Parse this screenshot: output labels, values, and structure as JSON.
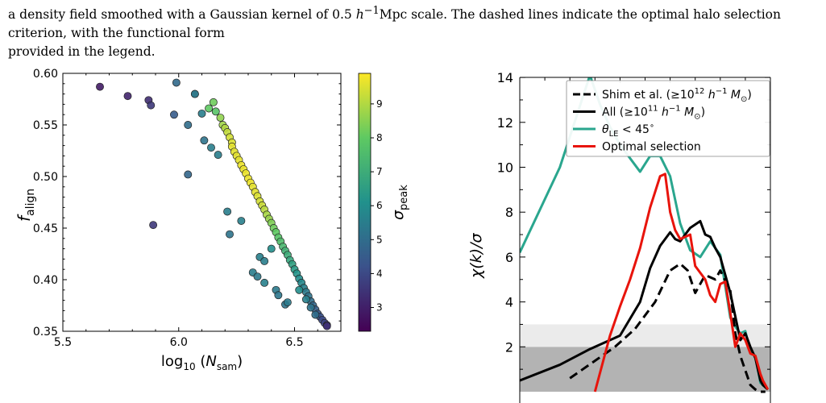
{
  "caption": {
    "line1_part1": "a density field smoothed with a Gaussian kernel of 0.5 ",
    "line1_h": "h",
    "line1_sup": "−1",
    "line1_part2": "Mpc scale. The dashed lines indicate the optimal halo selection criterion, with the functional form",
    "line2": "provided in the legend."
  },
  "colors": {
    "black": "#000000",
    "teal": "#2aa68e",
    "red": "#e8140c",
    "band_light": "#ebebeb",
    "band_dark": "#b3b3b3"
  },
  "chart_data": [
    {
      "type": "scatter",
      "title": "",
      "xlabel": "log10 (N_sam)",
      "ylabel": "f_align",
      "xlim": [
        5.5,
        6.7
      ],
      "ylim": [
        0.35,
        0.6
      ],
      "xticks": [
        "5.5",
        "6.0",
        "6.5"
      ],
      "yticks": [
        "0.35",
        "0.40",
        "0.45",
        "0.50",
        "0.55",
        "0.60"
      ],
      "colorbar": {
        "label": "σ_peak",
        "range": [
          2.3,
          9.9
        ],
        "ticks": [
          "3",
          "4",
          "5",
          "6",
          "7",
          "8",
          "9"
        ],
        "colormap": "viridis"
      },
      "points": [
        [
          5.66,
          0.587,
          2.9
        ],
        [
          5.78,
          0.578,
          3.1
        ],
        [
          5.87,
          0.574,
          3.3
        ],
        [
          5.88,
          0.569,
          3.6
        ],
        [
          5.89,
          0.453,
          3.6
        ],
        [
          5.98,
          0.56,
          4.5
        ],
        [
          5.99,
          0.591,
          4.9
        ],
        [
          6.04,
          0.55,
          5.0
        ],
        [
          6.04,
          0.502,
          4.8
        ],
        [
          6.07,
          0.58,
          7.0
        ],
        [
          6.07,
          0.58,
          5.2
        ],
        [
          6.1,
          0.561,
          5.5
        ],
        [
          6.11,
          0.535,
          5.2
        ],
        [
          6.13,
          0.566,
          8.0
        ],
        [
          6.15,
          0.572,
          8.2
        ],
        [
          6.14,
          0.528,
          5.5
        ],
        [
          6.16,
          0.563,
          7.8
        ],
        [
          6.18,
          0.557,
          8.6
        ],
        [
          6.19,
          0.55,
          8.8
        ],
        [
          6.17,
          0.521,
          5.5
        ],
        [
          6.2,
          0.547,
          9.0
        ],
        [
          6.21,
          0.543,
          9.2
        ],
        [
          6.21,
          0.466,
          5.5
        ],
        [
          6.22,
          0.538,
          9.4
        ],
        [
          6.23,
          0.533,
          9.5
        ],
        [
          6.23,
          0.529,
          9.6
        ],
        [
          6.22,
          0.444,
          5.2
        ],
        [
          6.24,
          0.524,
          9.6
        ],
        [
          6.25,
          0.52,
          9.6
        ],
        [
          6.26,
          0.516,
          9.6
        ],
        [
          6.27,
          0.511,
          9.7
        ],
        [
          6.28,
          0.507,
          9.7
        ],
        [
          6.27,
          0.457,
          5.6
        ],
        [
          6.29,
          0.503,
          9.7
        ],
        [
          6.3,
          0.498,
          9.7
        ],
        [
          6.31,
          0.494,
          9.7
        ],
        [
          6.32,
          0.49,
          9.6
        ],
        [
          6.33,
          0.485,
          9.6
        ],
        [
          6.34,
          0.481,
          9.5
        ],
        [
          6.35,
          0.476,
          9.4
        ],
        [
          6.36,
          0.472,
          9.3
        ],
        [
          6.37,
          0.468,
          9.1
        ],
        [
          6.38,
          0.463,
          8.9
        ],
        [
          6.39,
          0.459,
          8.7
        ],
        [
          6.4,
          0.455,
          8.4
        ],
        [
          6.41,
          0.45,
          8.2
        ],
        [
          6.42,
          0.446,
          8.0
        ],
        [
          6.43,
          0.441,
          7.8
        ],
        [
          6.44,
          0.437,
          7.6
        ],
        [
          6.45,
          0.432,
          7.4
        ],
        [
          6.46,
          0.428,
          7.2
        ],
        [
          6.47,
          0.424,
          7.0
        ],
        [
          6.48,
          0.419,
          6.8
        ],
        [
          6.49,
          0.415,
          6.6
        ],
        [
          6.5,
          0.41,
          6.4
        ],
        [
          6.51,
          0.406,
          6.2
        ],
        [
          6.52,
          0.401,
          6.0
        ],
        [
          6.53,
          0.397,
          5.8
        ],
        [
          6.54,
          0.392,
          5.6
        ],
        [
          6.55,
          0.388,
          5.4
        ],
        [
          6.56,
          0.384,
          5.2
        ],
        [
          6.57,
          0.379,
          5.0
        ],
        [
          6.58,
          0.375,
          4.8
        ],
        [
          6.59,
          0.371,
          4.6
        ],
        [
          6.6,
          0.367,
          4.4
        ],
        [
          6.61,
          0.364,
          4.2
        ],
        [
          6.62,
          0.361,
          4.0
        ],
        [
          6.63,
          0.358,
          3.8
        ],
        [
          6.64,
          0.356,
          3.6
        ],
        [
          6.64,
          0.355,
          3.4
        ],
        [
          6.35,
          0.422,
          5.6
        ],
        [
          6.37,
          0.418,
          5.5
        ],
        [
          6.32,
          0.407,
          5.5
        ],
        [
          6.34,
          0.403,
          5.4
        ],
        [
          6.37,
          0.397,
          5.6
        ],
        [
          6.4,
          0.43,
          6.0
        ],
        [
          6.42,
          0.39,
          5.4
        ],
        [
          6.43,
          0.385,
          5.3
        ],
        [
          6.46,
          0.376,
          5.2
        ],
        [
          6.47,
          0.378,
          5.4
        ],
        [
          6.52,
          0.39,
          6.0
        ],
        [
          6.55,
          0.381,
          5.6
        ],
        [
          6.57,
          0.373,
          5.2
        ],
        [
          6.59,
          0.366,
          5.0
        ]
      ]
    },
    {
      "type": "line",
      "title": "",
      "xlabel": "",
      "ylabel": "χ(k)/σ",
      "ylim": [
        0,
        15
      ],
      "yticks": [
        "2",
        "4",
        "6",
        "8",
        "10",
        "12",
        "14"
      ],
      "bands": [
        {
          "from": 0,
          "to": 2,
          "color": "band_dark"
        },
        {
          "from": 2,
          "to": 3,
          "color": "band_light"
        }
      ],
      "legend": {
        "placement": "top-right",
        "entries": [
          {
            "text_main": "Shim et al. (≥10",
            "sup1": "12",
            "text_mid": " h",
            "sup2": "−1",
            "text_end": " M",
            "sub": "⊙",
            "close": ")"
          },
          {
            "text_main": "All (≥10",
            "sup1": "11",
            "text_mid": " h",
            "sup2": "−1",
            "text_end": " M",
            "sub": "⊙",
            "close": ")"
          },
          {
            "text_main": "θ",
            "sub": "LE",
            "text_end": " < 45",
            "sup1": "∘"
          },
          {
            "text_main": "Optimal selection"
          }
        ]
      },
      "series": [
        {
          "name": "Shim et al. (≥10^12 h^-1 M⊙)",
          "color": "black",
          "dashed": true,
          "x": [
            0.2,
            0.38,
            0.46,
            0.54,
            0.6,
            0.64,
            0.67,
            0.7,
            0.74,
            0.78,
            0.8,
            0.84,
            0.86,
            0.88,
            0.92,
            0.94,
            0.96,
            0.98
          ],
          "y": [
            0.6,
            2.0,
            2.8,
            4.0,
            5.4,
            5.7,
            5.4,
            4.4,
            5.2,
            5.0,
            5.4,
            4.5,
            2.6,
            1.6,
            0.3,
            0.1,
            0.0,
            0.0
          ]
        },
        {
          "name": "All (≥10^11 h^-1 M⊙)",
          "color": "black",
          "dashed": false,
          "x": [
            0.0,
            0.16,
            0.28,
            0.4,
            0.48,
            0.52,
            0.56,
            0.6,
            0.62,
            0.64,
            0.68,
            0.72,
            0.74,
            0.76,
            0.78,
            0.8,
            0.84,
            0.88,
            0.9,
            0.92,
            0.94,
            0.96,
            0.97,
            0.99
          ],
          "y": [
            0.5,
            1.2,
            1.9,
            2.5,
            4.0,
            5.5,
            6.5,
            7.1,
            6.8,
            6.7,
            7.3,
            7.6,
            7.0,
            6.9,
            6.4,
            6.0,
            4.4,
            2.3,
            2.6,
            2.0,
            1.5,
            0.5,
            0.3,
            0.1
          ]
        },
        {
          "name": "θ_LE < 45°",
          "color": "teal",
          "dashed": false,
          "x": [
            0.0,
            0.16,
            0.28,
            0.32,
            0.36,
            0.4,
            0.48,
            0.52,
            0.56,
            0.6,
            0.64,
            0.68,
            0.72,
            0.76,
            0.8,
            0.84,
            0.86,
            0.88,
            0.9,
            0.92,
            0.94,
            0.96,
            0.97,
            0.99
          ],
          "y": [
            6.2,
            10.0,
            14.1,
            12.8,
            11.8,
            11.0,
            9.8,
            10.5,
            10.5,
            9.6,
            7.5,
            6.3,
            6.0,
            6.7,
            6.1,
            3.3,
            2.9,
            2.6,
            2.7,
            1.8,
            1.6,
            0.4,
            0.3,
            0.1
          ]
        },
        {
          "name": "Optimal selection",
          "color": "red",
          "dashed": false,
          "x": [
            0.3,
            0.36,
            0.4,
            0.44,
            0.48,
            0.52,
            0.56,
            0.58,
            0.6,
            0.62,
            0.64,
            0.66,
            0.68,
            0.7,
            0.72,
            0.74,
            0.76,
            0.78,
            0.8,
            0.82,
            0.84,
            0.86,
            0.88,
            0.9,
            0.92,
            0.94,
            0.96,
            0.97,
            0.99
          ],
          "y": [
            0.0,
            2.5,
            3.8,
            5.0,
            6.4,
            8.2,
            9.6,
            9.7,
            8.0,
            7.2,
            6.8,
            6.9,
            7.0,
            5.6,
            5.3,
            5.0,
            4.3,
            4.0,
            4.8,
            4.9,
            3.5,
            2.0,
            2.6,
            2.3,
            1.7,
            1.6,
            0.8,
            0.5,
            0.1
          ]
        }
      ]
    }
  ]
}
